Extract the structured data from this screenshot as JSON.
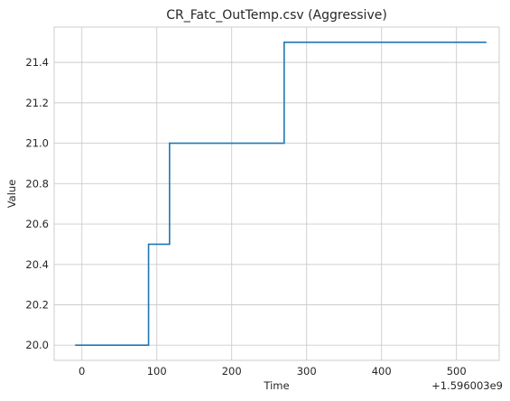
{
  "chart_data": {
    "type": "line",
    "title": "CR_Fatc_OutTemp.csv (Aggressive)",
    "xlabel": "Time",
    "ylabel": "Value",
    "x_offset_label": "+1.596003e9",
    "line_style": "steps-post",
    "grid": true,
    "xlim": [
      -37,
      557
    ],
    "ylim": [
      19.925,
      21.575
    ],
    "xticks": [
      0,
      100,
      200,
      300,
      400,
      500
    ],
    "xtick_labels": [
      "0",
      "100",
      "200",
      "300",
      "400",
      "500"
    ],
    "yticks": [
      20.0,
      20.2,
      20.4,
      20.6,
      20.8,
      21.0,
      21.2,
      21.4
    ],
    "ytick_labels": [
      "20.0",
      "20.2",
      "20.4",
      "20.6",
      "20.8",
      "21.0",
      "21.2",
      "21.4"
    ],
    "series": [
      {
        "color": "#1f77b4",
        "x": [
          -9,
          89,
          117,
          270,
          540
        ],
        "y": [
          20.0,
          20.5,
          21.0,
          21.5,
          21.5
        ]
      }
    ]
  }
}
